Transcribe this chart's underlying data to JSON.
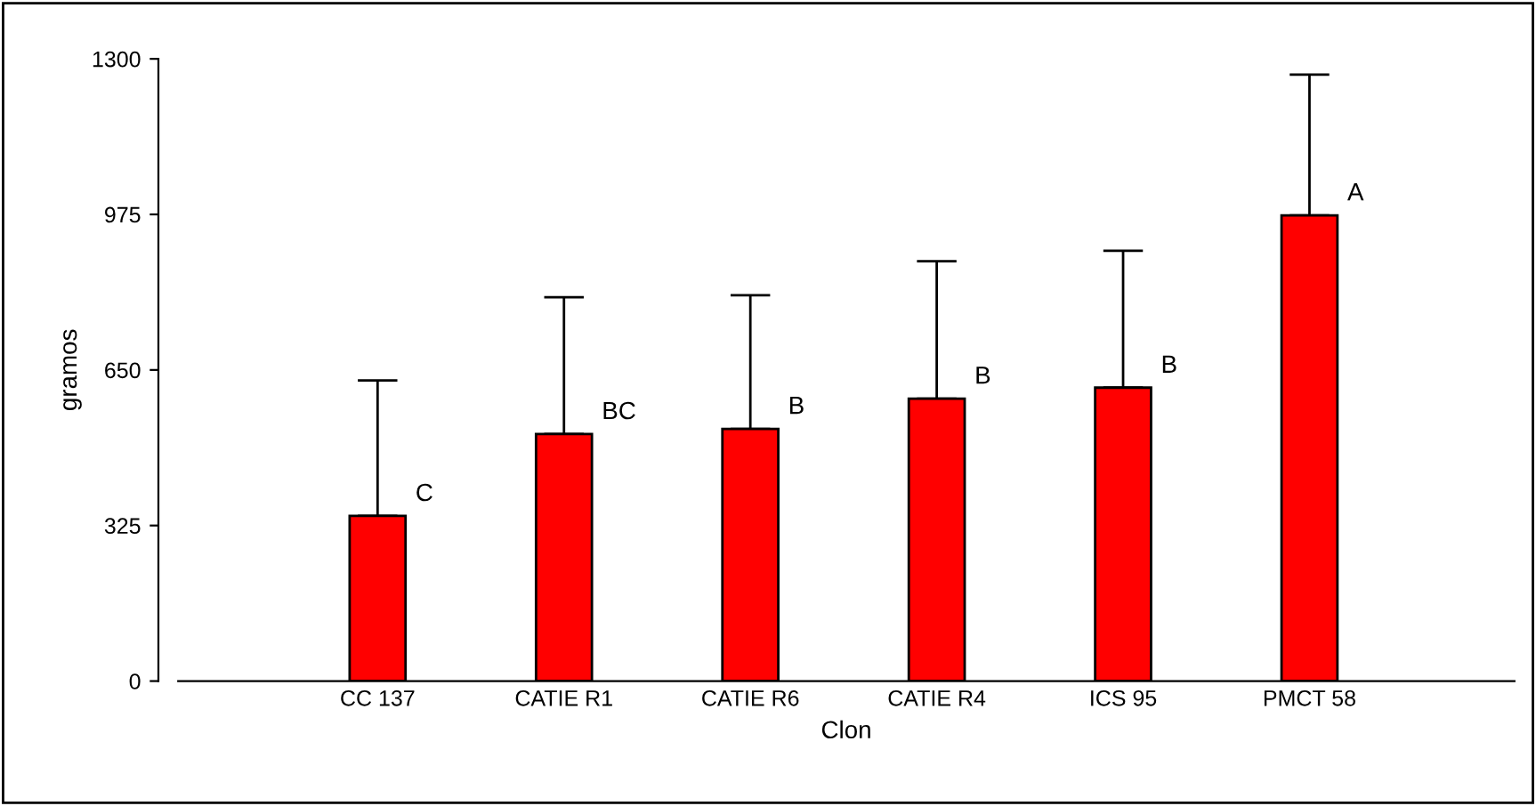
{
  "chart_data": {
    "type": "bar",
    "xlabel": "Clon",
    "ylabel": "gramos",
    "categories": [
      "CC 137",
      "CATIE R1",
      "CATIE R6",
      "CATIE R4",
      "ICS 95",
      "PMCT 58"
    ],
    "values": [
      345,
      516,
      527,
      590,
      613,
      973
    ],
    "errors": [
      [
        345,
        628
      ],
      [
        516,
        802
      ],
      [
        527,
        806
      ],
      [
        590,
        877
      ],
      [
        613,
        899
      ],
      [
        973,
        1267
      ]
    ],
    "color": "#ff0000",
    "ylim": [
      0,
      1300
    ],
    "yticks": [
      0,
      325,
      650,
      975,
      1300
    ],
    "grid": false,
    "legend": false,
    "annotations": [
      {
        "text": "C",
        "x": "CC 137",
        "y": 345
      },
      {
        "text": "BC",
        "x": "CATIE R1",
        "y": 516
      },
      {
        "text": "B",
        "x": "CATIE R6",
        "y": 527
      },
      {
        "text": "B",
        "x": "CATIE R4",
        "y": 590
      },
      {
        "text": "B",
        "x": "ICS 95",
        "y": 613
      },
      {
        "text": "A",
        "x": "PMCT 58",
        "y": 973
      }
    ]
  }
}
